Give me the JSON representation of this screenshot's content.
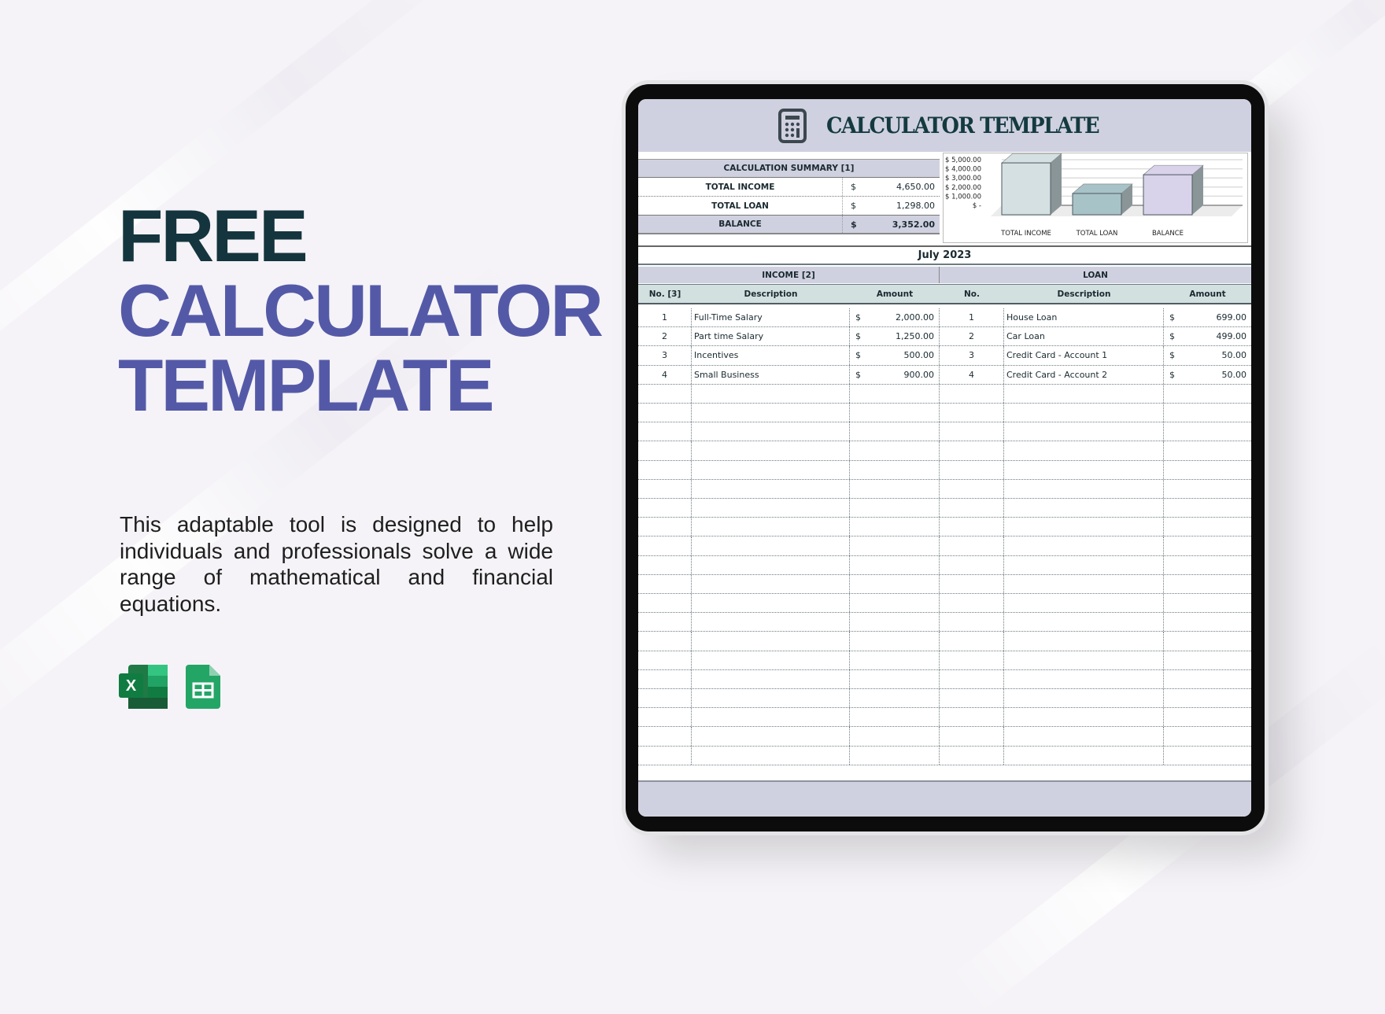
{
  "promo": {
    "headline": [
      "FREE",
      "CALCULATOR",
      "TEMPLATE"
    ],
    "description": "This adaptable tool is designed to help individuals and professionals solve a wide range of mathematical and financial equations.",
    "app_icons": [
      "excel-icon",
      "google-sheets-icon"
    ],
    "colors": {
      "dark": "#14353d",
      "accent": "#5459a7",
      "background": "#f5f3f7"
    }
  },
  "sheet": {
    "title": "CALCULATOR TEMPLATE",
    "title_icon": "calculator-icon",
    "summary": {
      "header": "CALCULATION SUMMARY [1]",
      "rows": [
        {
          "label": "TOTAL INCOME",
          "currency": "$",
          "value": "4,650.00"
        },
        {
          "label": "TOTAL LOAN",
          "currency": "$",
          "value": "1,298.00"
        },
        {
          "label": "BALANCE",
          "currency": "$",
          "value": "3,352.00"
        }
      ]
    },
    "period": "July 2023",
    "income": {
      "header": "INCOME [2]",
      "columns": [
        "No. [3]",
        "Description",
        "Amount"
      ],
      "rows": [
        {
          "no": "1",
          "description": "Full-Time Salary",
          "currency": "$",
          "amount": "2,000.00"
        },
        {
          "no": "2",
          "description": "Part time Salary",
          "currency": "$",
          "amount": "1,250.00"
        },
        {
          "no": "3",
          "description": "Incentives",
          "currency": "$",
          "amount": "500.00"
        },
        {
          "no": "4",
          "description": "Small Business",
          "currency": "$",
          "amount": "900.00"
        }
      ]
    },
    "loan": {
      "header": "LOAN",
      "columns": [
        "No.",
        "Description",
        "Amount"
      ],
      "rows": [
        {
          "no": "1",
          "description": "House Loan",
          "currency": "$",
          "amount": "699.00"
        },
        {
          "no": "2",
          "description": "Car Loan",
          "currency": "$",
          "amount": "499.00"
        },
        {
          "no": "3",
          "description": "Credit Card - Account 1",
          "currency": "$",
          "amount": "50.00"
        },
        {
          "no": "4",
          "description": "Credit Card - Account 2",
          "currency": "$",
          "amount": "50.00"
        }
      ]
    },
    "colors": {
      "band": "#d0d1e0",
      "column_header": "#d3e0e0",
      "title_text": "#143a40"
    }
  },
  "chart_data": {
    "type": "bar",
    "categories": [
      "TOTAL INCOME",
      "TOTAL LOAN",
      "BALANCE"
    ],
    "values": [
      4650,
      1298,
      3352
    ],
    "ylim": [
      0,
      5000
    ],
    "yticks": [
      "$ 5,000.00",
      "$ 4,000.00",
      "$ 3,000.00",
      "$ 2,000.00",
      "$ 1,000.00",
      "$ -"
    ],
    "colors": [
      "#d4e0e2",
      "#a8c3c8",
      "#d8d3ea"
    ],
    "style": "3d",
    "grid": true
  }
}
